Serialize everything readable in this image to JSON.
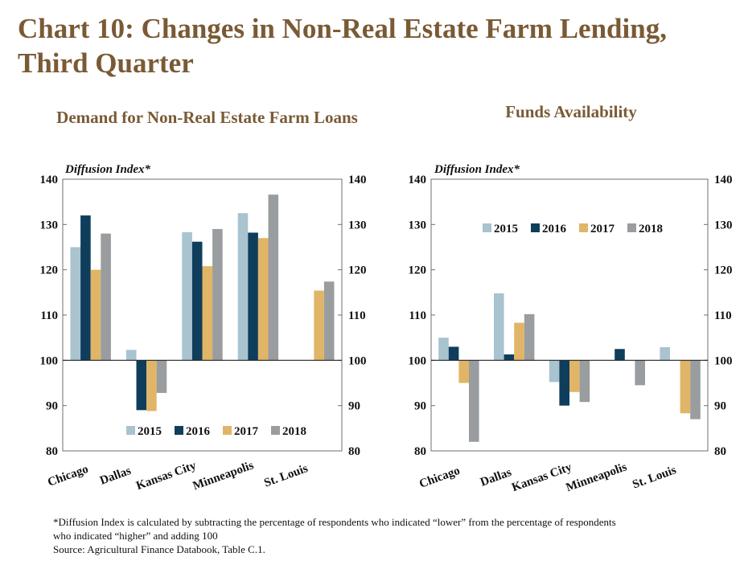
{
  "title": "Chart 10: Changes in Non-Real Estate Farm Lending, Third Quarter",
  "footnote": "*Diffusion Index is calculated by subtracting the percentage of respondents who indicated “lower” from the percentage of respondents who indicated “higher” and adding 100",
  "source": "Source: Agricultural Finance Databook, Table C.1.",
  "colors": {
    "2015": "#a9c3cf",
    "2016": "#0f3d5c",
    "2017": "#e1b567",
    "2018": "#9a9d9f",
    "title": "#7a5a35"
  },
  "chart_data": [
    {
      "type": "bar",
      "title": "Demand for Non-Real Estate Farm Loans",
      "ylabel": "Diffusion Index*",
      "ylim": [
        80,
        140
      ],
      "yticks": [
        "80",
        "90",
        "100",
        "110",
        "120",
        "130",
        "140"
      ],
      "baseline": 100,
      "legend_position": "bottom",
      "categories": [
        "Chicago",
        "Dallas",
        "Kansas City",
        "Minneapolis",
        "St. Louis"
      ],
      "series": [
        {
          "name": "2015",
          "values": [
            125,
            102.3,
            128.3,
            132.5,
            null
          ]
        },
        {
          "name": "2016",
          "values": [
            132,
            89,
            126.2,
            128.2,
            null
          ]
        },
        {
          "name": "2017",
          "values": [
            120,
            88.8,
            120.8,
            127,
            115.4
          ]
        },
        {
          "name": "2018",
          "values": [
            128,
            92.8,
            129,
            136.6,
            117.4
          ]
        }
      ]
    },
    {
      "type": "bar",
      "title": "Funds Availability",
      "ylabel": "Diffusion Index*",
      "ylim": [
        80,
        140
      ],
      "yticks": [
        "80",
        "90",
        "100",
        "110",
        "120",
        "130",
        "140"
      ],
      "baseline": 100,
      "legend_position": "top",
      "categories": [
        "Chicago",
        "Dallas",
        "Kansas City",
        "Minneapolis",
        "St. Louis"
      ],
      "series": [
        {
          "name": "2015",
          "values": [
            105,
            114.8,
            95.2,
            null,
            102.9
          ]
        },
        {
          "name": "2016",
          "values": [
            103,
            101.3,
            90,
            102.5,
            null
          ]
        },
        {
          "name": "2017",
          "values": [
            95,
            108.3,
            93,
            null,
            88.3
          ]
        },
        {
          "name": "2018",
          "values": [
            82,
            110.2,
            90.8,
            94.5,
            87
          ]
        }
      ]
    }
  ]
}
